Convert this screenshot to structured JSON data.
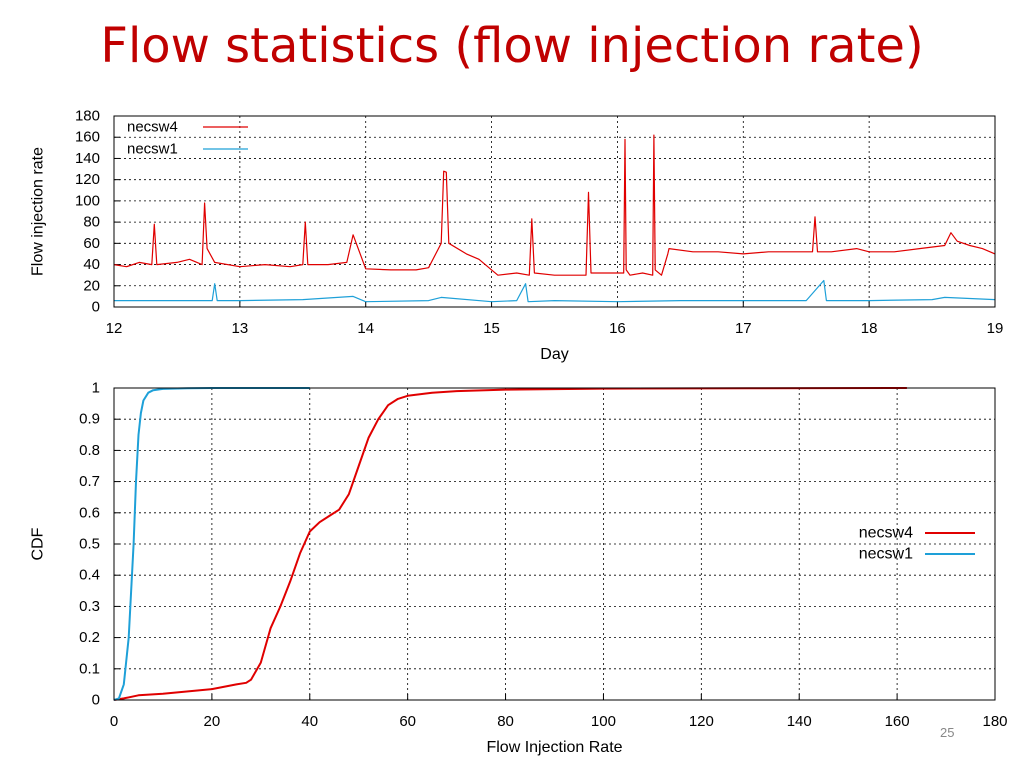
{
  "slide": {
    "title": "Flow statistics (flow injection rate)",
    "page_number": "25"
  },
  "colors": {
    "title": "#c00000",
    "necsw4": "#e00000",
    "necsw1": "#1ea0d8",
    "grid": "#000000"
  },
  "chart_data": [
    {
      "type": "line",
      "xlabel": "Day",
      "ylabel": "Flow injection rate",
      "xlim": [
        12,
        19
      ],
      "ylim": [
        0,
        180
      ],
      "xticks": [
        "12",
        "13",
        "14",
        "15",
        "16",
        "17",
        "18",
        "19"
      ],
      "yticks": [
        "0",
        "20",
        "40",
        "60",
        "80",
        "100",
        "120",
        "140",
        "160",
        "180"
      ],
      "grid": true,
      "legend_position": "top-left",
      "series": [
        {
          "name": "necsw4",
          "color": "#e00000",
          "x": [
            12.0,
            12.1,
            12.2,
            12.3,
            12.32,
            12.34,
            12.5,
            12.6,
            12.7,
            12.72,
            12.74,
            12.8,
            13.0,
            13.2,
            13.4,
            13.5,
            13.52,
            13.54,
            13.7,
            13.85,
            13.9,
            14.0,
            14.2,
            14.4,
            14.5,
            14.6,
            14.62,
            14.64,
            14.66,
            14.8,
            14.9,
            15.0,
            15.05,
            15.2,
            15.3,
            15.32,
            15.34,
            15.5,
            15.6,
            15.75,
            15.77,
            15.79,
            15.9,
            16.0,
            16.05,
            16.06,
            16.07,
            16.1,
            16.2,
            16.28,
            16.29,
            16.3,
            16.35,
            16.4,
            16.41,
            16.6,
            16.8,
            17.0,
            17.2,
            17.4,
            17.55,
            17.57,
            17.59,
            17.7,
            17.9,
            18.0,
            18.2,
            18.4,
            18.6,
            18.65,
            18.7,
            18.8,
            18.9,
            19.0
          ],
          "y": [
            40,
            38,
            42,
            40,
            78,
            40,
            42,
            45,
            40,
            98,
            55,
            42,
            38,
            40,
            38,
            40,
            80,
            40,
            40,
            42,
            68,
            36,
            35,
            35,
            37,
            60,
            128,
            127,
            60,
            50,
            45,
            35,
            30,
            32,
            30,
            83,
            32,
            30,
            30,
            30,
            108,
            32,
            32,
            32,
            32,
            158,
            35,
            30,
            32,
            30,
            162,
            35,
            30,
            50,
            55,
            52,
            52,
            50,
            52,
            52,
            52,
            85,
            52,
            52,
            55,
            52,
            52,
            55,
            58,
            70,
            62,
            58,
            55,
            50
          ]
        },
        {
          "name": "necsw1",
          "color": "#1ea0d8",
          "x": [
            12.0,
            12.5,
            12.78,
            12.8,
            12.82,
            13.0,
            13.5,
            13.9,
            14.0,
            14.5,
            14.6,
            15.0,
            15.2,
            15.27,
            15.29,
            15.5,
            16.0,
            16.5,
            17.0,
            17.5,
            17.64,
            17.66,
            18.0,
            18.5,
            18.6,
            19.0
          ],
          "y": [
            6,
            6,
            6,
            22,
            6,
            6,
            7,
            10,
            5,
            6,
            9,
            5,
            6,
            22,
            5,
            6,
            5,
            6,
            6,
            6,
            25,
            6,
            6,
            7,
            9,
            7
          ]
        }
      ]
    },
    {
      "type": "line",
      "xlabel": "Flow Injection Rate",
      "ylabel": "CDF",
      "xlim": [
        0,
        180
      ],
      "ylim": [
        0,
        1
      ],
      "xticks": [
        "0",
        "20",
        "40",
        "60",
        "80",
        "100",
        "120",
        "140",
        "160",
        "180"
      ],
      "yticks": [
        "0",
        "0.1",
        "0.2",
        "0.3",
        "0.4",
        "0.5",
        "0.6",
        "0.7",
        "0.8",
        "0.9",
        "1"
      ],
      "grid": true,
      "legend_position": "right",
      "series": [
        {
          "name": "necsw4",
          "color": "#e00000",
          "x": [
            0,
            2,
            5,
            10,
            20,
            25,
            27,
            28,
            30,
            32,
            34,
            36,
            38,
            40,
            42,
            44,
            46,
            48,
            50,
            52,
            54,
            56,
            58,
            60,
            65,
            70,
            80,
            100,
            130,
            162
          ],
          "y": [
            0,
            0.005,
            0.015,
            0.02,
            0.035,
            0.05,
            0.055,
            0.065,
            0.12,
            0.23,
            0.3,
            0.38,
            0.47,
            0.54,
            0.57,
            0.59,
            0.61,
            0.66,
            0.75,
            0.84,
            0.9,
            0.945,
            0.965,
            0.975,
            0.985,
            0.99,
            0.995,
            0.998,
            0.999,
            1.0
          ]
        },
        {
          "name": "necsw1",
          "color": "#1ea0d8",
          "x": [
            0,
            1,
            2,
            3,
            4,
            4.5,
            5,
            5.5,
            6,
            7,
            8,
            10,
            15,
            20,
            40
          ],
          "y": [
            0,
            0.005,
            0.05,
            0.2,
            0.5,
            0.7,
            0.85,
            0.92,
            0.96,
            0.985,
            0.993,
            0.997,
            0.999,
            1.0,
            1.0
          ]
        }
      ]
    }
  ]
}
